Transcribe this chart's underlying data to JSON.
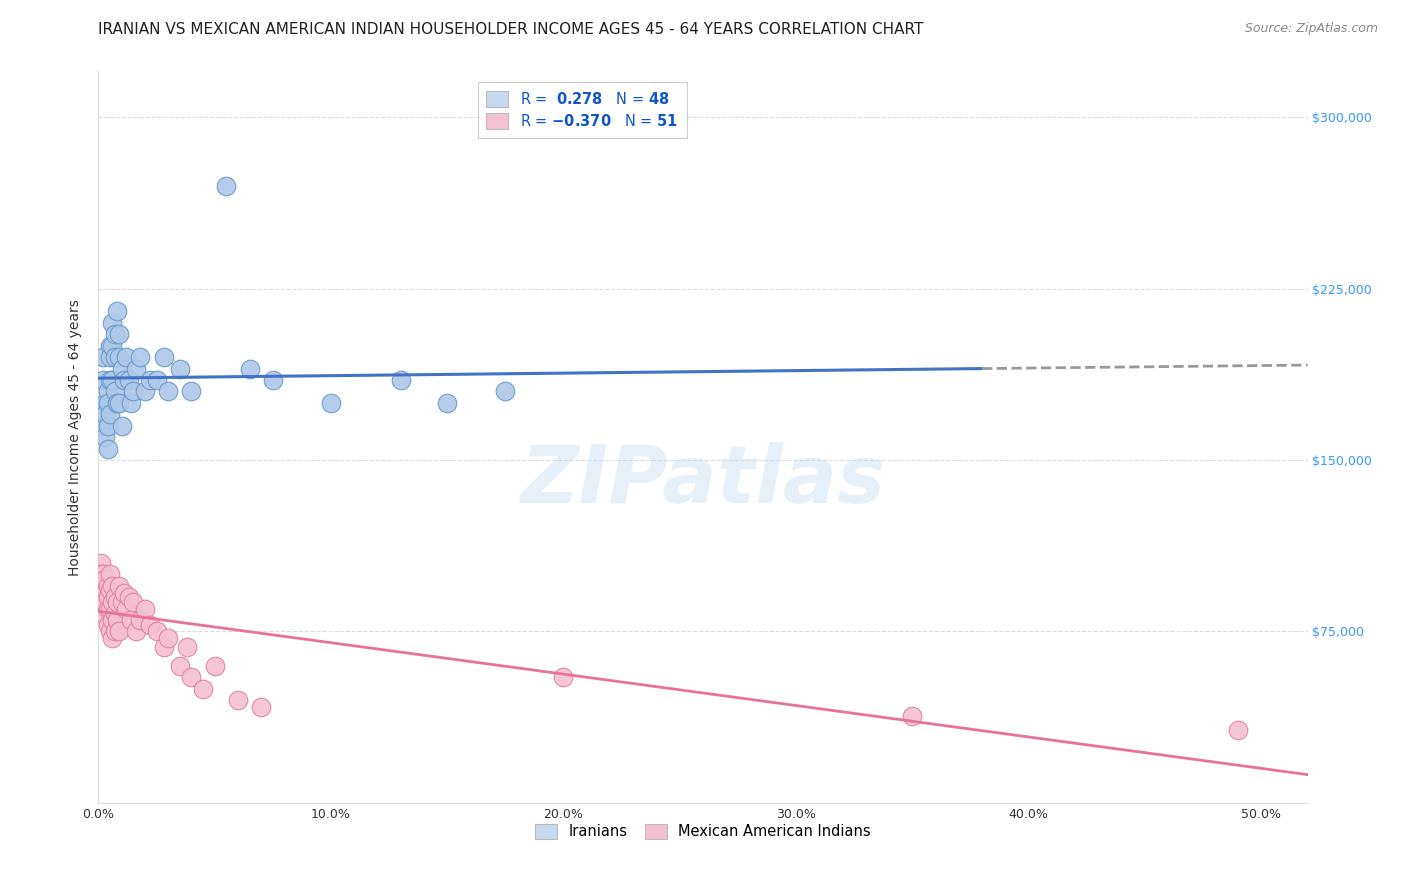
{
  "title": "IRANIAN VS MEXICAN AMERICAN INDIAN HOUSEHOLDER INCOME AGES 45 - 64 YEARS CORRELATION CHART",
  "source": "Source: ZipAtlas.com",
  "ylabel": "Householder Income Ages 45 - 64 years",
  "ytick_labels": [
    "$75,000",
    "$150,000",
    "$225,000",
    "$300,000"
  ],
  "ytick_values": [
    75000,
    150000,
    225000,
    300000
  ],
  "ylim": [
    0,
    320000
  ],
  "xlim": [
    0.0,
    0.52
  ],
  "watermark": "ZIPatlas",
  "blue_R": "0.278",
  "blue_N": "48",
  "pink_N": "51",
  "blue_scatter_x": [
    0.001,
    0.002,
    0.002,
    0.003,
    0.003,
    0.003,
    0.004,
    0.004,
    0.004,
    0.004,
    0.005,
    0.005,
    0.005,
    0.005,
    0.006,
    0.006,
    0.006,
    0.007,
    0.007,
    0.007,
    0.008,
    0.008,
    0.009,
    0.009,
    0.009,
    0.01,
    0.01,
    0.011,
    0.012,
    0.013,
    0.014,
    0.015,
    0.016,
    0.018,
    0.02,
    0.022,
    0.025,
    0.028,
    0.03,
    0.035,
    0.04,
    0.055,
    0.065,
    0.075,
    0.1,
    0.13,
    0.15,
    0.175
  ],
  "blue_scatter_y": [
    165000,
    195000,
    185000,
    175000,
    170000,
    160000,
    180000,
    175000,
    165000,
    155000,
    200000,
    195000,
    185000,
    170000,
    210000,
    200000,
    185000,
    205000,
    195000,
    180000,
    215000,
    175000,
    205000,
    195000,
    175000,
    190000,
    165000,
    185000,
    195000,
    185000,
    175000,
    180000,
    190000,
    195000,
    180000,
    185000,
    185000,
    195000,
    180000,
    190000,
    180000,
    270000,
    190000,
    185000,
    175000,
    185000,
    175000,
    180000
  ],
  "pink_scatter_x": [
    0.001,
    0.001,
    0.002,
    0.002,
    0.002,
    0.003,
    0.003,
    0.003,
    0.003,
    0.004,
    0.004,
    0.004,
    0.004,
    0.005,
    0.005,
    0.005,
    0.005,
    0.006,
    0.006,
    0.006,
    0.006,
    0.007,
    0.007,
    0.007,
    0.008,
    0.008,
    0.009,
    0.009,
    0.01,
    0.011,
    0.012,
    0.013,
    0.014,
    0.015,
    0.016,
    0.018,
    0.02,
    0.022,
    0.025,
    0.028,
    0.03,
    0.035,
    0.038,
    0.04,
    0.045,
    0.05,
    0.06,
    0.07,
    0.2,
    0.35,
    0.49
  ],
  "pink_scatter_y": [
    105000,
    100000,
    100000,
    95000,
    90000,
    98000,
    92000,
    88000,
    82000,
    95000,
    90000,
    85000,
    78000,
    100000,
    93000,
    85000,
    75000,
    95000,
    88000,
    80000,
    72000,
    90000,
    83000,
    75000,
    88000,
    80000,
    95000,
    75000,
    88000,
    92000,
    85000,
    90000,
    80000,
    88000,
    75000,
    80000,
    85000,
    78000,
    75000,
    68000,
    72000,
    60000,
    68000,
    55000,
    50000,
    60000,
    45000,
    42000,
    55000,
    38000,
    32000
  ],
  "blue_line_color": "#4472c4",
  "pink_line_color": "#e8739a",
  "blue_scatter_color": "#adc8e8",
  "pink_scatter_color": "#f5c0d2",
  "blue_scatter_edge": "#6699cc",
  "pink_scatter_edge": "#e080a0",
  "dashed_extension_color": "#999999",
  "legend_blue_color": "#c5d9f1",
  "legend_pink_color": "#f5c0d2",
  "grid_color": "#dddddd",
  "background_color": "#ffffff",
  "watermark_color": "#c8dff0",
  "watermark_alpha": 0.45,
  "title_fontsize": 11,
  "source_fontsize": 9,
  "legend_fontsize": 10.5,
  "axis_label_fontsize": 10,
  "tick_fontsize": 9,
  "ytick_color": "#3399ff",
  "xtick_color": "#333333"
}
